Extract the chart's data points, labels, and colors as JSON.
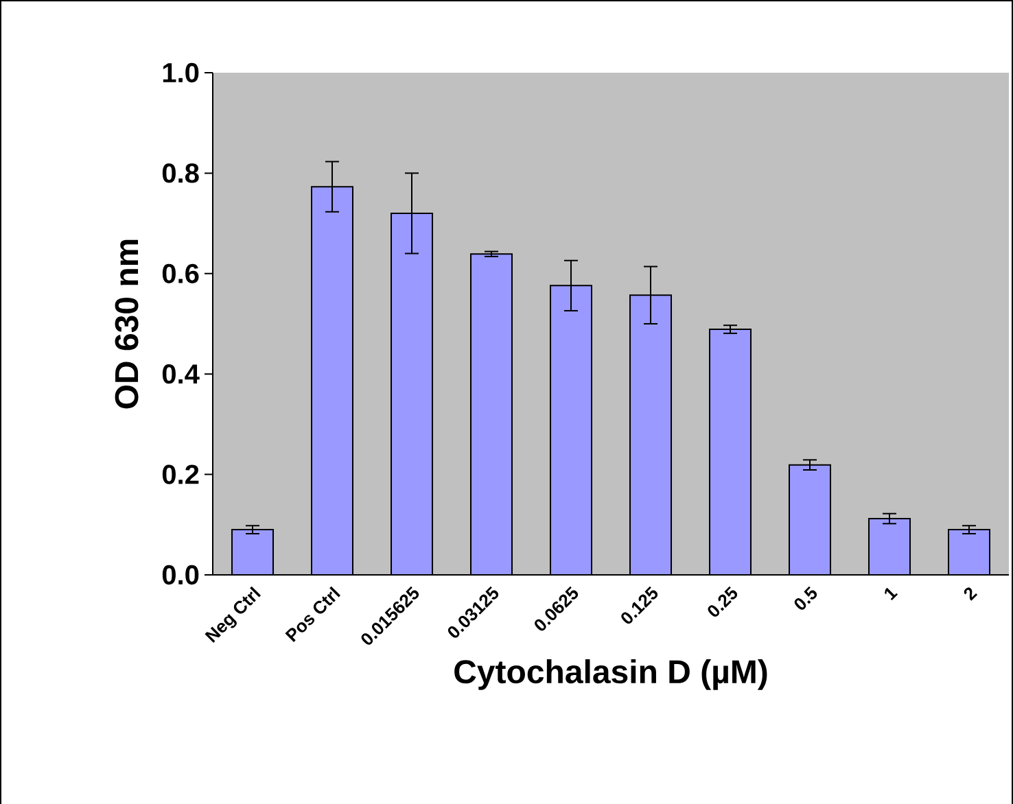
{
  "chart_data": {
    "type": "bar",
    "xlabel": "Cytochalasin D (µM)",
    "ylabel": "OD 630 nm",
    "categories": [
      "Neg Ctrl",
      "Pos Ctrl",
      "0.015625",
      "0.03125",
      "0.0625",
      "0.125",
      "0.25",
      "0.5",
      "1",
      "2"
    ],
    "values": [
      0.09,
      0.773,
      0.72,
      0.639,
      0.576,
      0.557,
      0.489,
      0.219,
      0.112,
      0.09
    ],
    "errors": [
      0.008,
      0.05,
      0.08,
      0.005,
      0.05,
      0.057,
      0.008,
      0.01,
      0.01,
      0.008
    ],
    "color": "#9999ff",
    "ylim": [
      0,
      1.0
    ],
    "yticks": [
      {
        "value": 0,
        "label": "0.0"
      },
      {
        "value": 0.2,
        "label": "0.2"
      },
      {
        "value": 0.4,
        "label": "0.4"
      },
      {
        "value": 0.6,
        "label": "0.6"
      },
      {
        "value": 0.8,
        "label": "0.8"
      },
      {
        "value": 1.0,
        "label": "1.0"
      }
    ]
  }
}
